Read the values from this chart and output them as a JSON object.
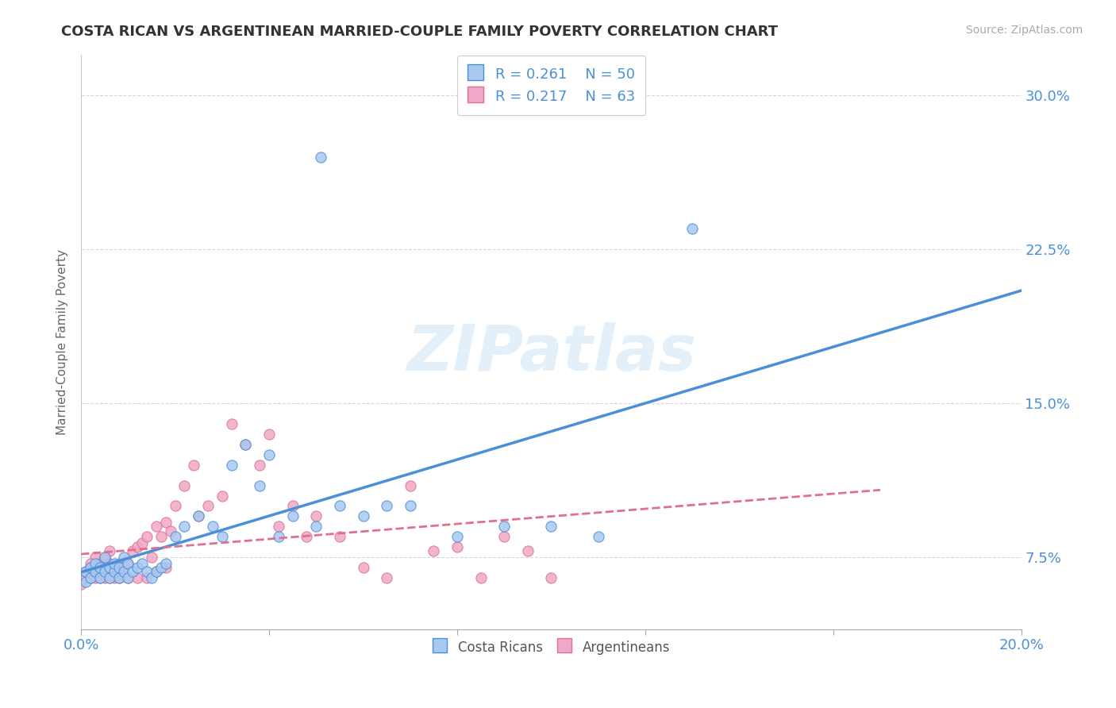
{
  "title": "COSTA RICAN VS ARGENTINEAN MARRIED-COUPLE FAMILY POVERTY CORRELATION CHART",
  "source": "Source: ZipAtlas.com",
  "ylabel": "Married-Couple Family Poverty",
  "xlim": [
    0.0,
    0.2
  ],
  "ylim": [
    0.04,
    0.32
  ],
  "xticks": [
    0.0,
    0.04,
    0.08,
    0.12,
    0.16,
    0.2
  ],
  "xtick_labels": [
    "0.0%",
    "",
    "",
    "",
    "",
    "20.0%"
  ],
  "yticks": [
    0.075,
    0.15,
    0.225,
    0.3
  ],
  "ytick_labels": [
    "7.5%",
    "15.0%",
    "22.5%",
    "30.0%"
  ],
  "legend_r1": "R = 0.261",
  "legend_n1": "N = 50",
  "legend_r2": "R = 0.217",
  "legend_n2": "N = 63",
  "color_blue": "#a8c8f0",
  "color_pink": "#f0a8c8",
  "line_blue": "#4a90d9",
  "line_pink": "#e07090",
  "background_color": "#ffffff",
  "costa_rican_x": [
    0.001,
    0.001,
    0.002,
    0.002,
    0.003,
    0.003,
    0.004,
    0.004,
    0.005,
    0.005,
    0.006,
    0.006,
    0.007,
    0.007,
    0.008,
    0.008,
    0.009,
    0.009,
    0.01,
    0.01,
    0.011,
    0.012,
    0.013,
    0.014,
    0.015,
    0.016,
    0.017,
    0.018,
    0.02,
    0.022,
    0.025,
    0.028,
    0.03,
    0.032,
    0.035,
    0.038,
    0.04,
    0.042,
    0.045,
    0.05,
    0.055,
    0.06,
    0.065,
    0.07,
    0.08,
    0.09,
    0.1,
    0.11,
    0.051,
    0.13
  ],
  "costa_rican_y": [
    0.063,
    0.068,
    0.07,
    0.065,
    0.068,
    0.072,
    0.065,
    0.07,
    0.075,
    0.068,
    0.07,
    0.065,
    0.068,
    0.072,
    0.065,
    0.07,
    0.075,
    0.068,
    0.065,
    0.072,
    0.068,
    0.07,
    0.072,
    0.068,
    0.065,
    0.068,
    0.07,
    0.072,
    0.085,
    0.09,
    0.095,
    0.09,
    0.085,
    0.12,
    0.13,
    0.11,
    0.125,
    0.085,
    0.095,
    0.09,
    0.1,
    0.095,
    0.1,
    0.1,
    0.085,
    0.09,
    0.09,
    0.085,
    0.27,
    0.235
  ],
  "argentinean_x": [
    0.0,
    0.001,
    0.001,
    0.002,
    0.002,
    0.003,
    0.003,
    0.003,
    0.004,
    0.004,
    0.005,
    0.005,
    0.005,
    0.006,
    0.006,
    0.007,
    0.007,
    0.008,
    0.008,
    0.009,
    0.01,
    0.011,
    0.012,
    0.013,
    0.014,
    0.015,
    0.016,
    0.017,
    0.018,
    0.019,
    0.02,
    0.022,
    0.024,
    0.025,
    0.027,
    0.03,
    0.032,
    0.035,
    0.038,
    0.04,
    0.042,
    0.045,
    0.048,
    0.05,
    0.055,
    0.06,
    0.065,
    0.07,
    0.075,
    0.08,
    0.085,
    0.09,
    0.095,
    0.1,
    0.002,
    0.004,
    0.006,
    0.008,
    0.01,
    0.012,
    0.014,
    0.016,
    0.018
  ],
  "argentinean_y": [
    0.062,
    0.065,
    0.068,
    0.07,
    0.065,
    0.065,
    0.068,
    0.075,
    0.068,
    0.072,
    0.065,
    0.07,
    0.075,
    0.078,
    0.072,
    0.065,
    0.068,
    0.072,
    0.065,
    0.07,
    0.072,
    0.078,
    0.08,
    0.082,
    0.085,
    0.075,
    0.09,
    0.085,
    0.092,
    0.088,
    0.1,
    0.11,
    0.12,
    0.095,
    0.1,
    0.105,
    0.14,
    0.13,
    0.12,
    0.135,
    0.09,
    0.1,
    0.085,
    0.095,
    0.085,
    0.07,
    0.065,
    0.11,
    0.078,
    0.08,
    0.065,
    0.085,
    0.078,
    0.065,
    0.072,
    0.065,
    0.065,
    0.068,
    0.065,
    0.065,
    0.065,
    0.068,
    0.07
  ]
}
